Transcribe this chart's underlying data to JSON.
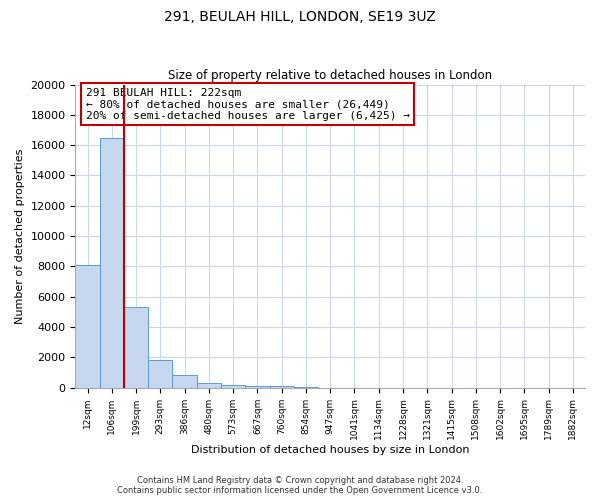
{
  "title": "291, BEULAH HILL, LONDON, SE19 3UZ",
  "subtitle": "Size of property relative to detached houses in London",
  "xlabel": "Distribution of detached houses by size in London",
  "ylabel": "Number of detached properties",
  "categories": [
    "12sqm",
    "106sqm",
    "199sqm",
    "293sqm",
    "386sqm",
    "480sqm",
    "573sqm",
    "667sqm",
    "760sqm",
    "854sqm",
    "947sqm",
    "1041sqm",
    "1134sqm",
    "1228sqm",
    "1321sqm",
    "1415sqm",
    "1508sqm",
    "1602sqm",
    "1695sqm",
    "1789sqm",
    "1882sqm"
  ],
  "values": [
    8100,
    16500,
    5300,
    1800,
    800,
    300,
    200,
    100,
    80,
    50,
    0,
    0,
    0,
    0,
    0,
    0,
    0,
    0,
    0,
    0,
    0
  ],
  "bar_color": "#c5d8f0",
  "bar_edge_color": "#5b9bd5",
  "red_line_bin": 2,
  "annotation_title": "291 BEULAH HILL: 222sqm",
  "annotation_line1": "← 80% of detached houses are smaller (26,449)",
  "annotation_line2": "20% of semi-detached houses are larger (6,425) →",
  "ylim": [
    0,
    20000
  ],
  "yticks": [
    0,
    2000,
    4000,
    6000,
    8000,
    10000,
    12000,
    14000,
    16000,
    18000,
    20000
  ],
  "footnote1": "Contains HM Land Registry data © Crown copyright and database right 2024.",
  "footnote2": "Contains public sector information licensed under the Open Government Licence v3.0.",
  "bg_color": "#ffffff",
  "grid_color": "#c8d8ea",
  "annotation_box_color": "#ffffff",
  "annotation_box_edge": "#c00000",
  "title_fontsize": 10,
  "subtitle_fontsize": 8.5,
  "ylabel_fontsize": 8,
  "xlabel_fontsize": 8,
  "ytick_fontsize": 8,
  "xtick_fontsize": 6.5,
  "annotation_fontsize": 8,
  "footnote_fontsize": 6
}
